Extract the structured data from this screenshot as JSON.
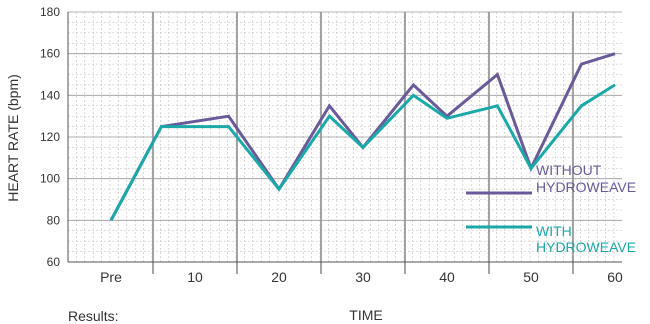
{
  "chart_data": {
    "type": "line",
    "categories": [
      "Pre",
      "10",
      "20",
      "30",
      "40",
      "50",
      "60"
    ],
    "xlabel": "TIME",
    "ylabel": "HEART RATE (bpm)",
    "ylim": [
      60,
      180
    ],
    "yticks": [
      60,
      80,
      100,
      120,
      140,
      160,
      180
    ],
    "grid": true,
    "legend_position": "right",
    "series": [
      {
        "name": "WITHOUT HYDROWEAVE",
        "color": "#6a5a9a",
        "x": [
          0,
          0.6,
          1.4,
          2.0,
          2.6,
          3.0,
          3.6,
          4.0,
          4.6,
          5.0,
          5.6,
          6.0
        ],
        "values": [
          80,
          125,
          130,
          95,
          135,
          115,
          145,
          130,
          150,
          105,
          155,
          160
        ]
      },
      {
        "name": "WITH HYDROWEAVE",
        "color": "#1aa8a8",
        "x": [
          0,
          0.6,
          1.4,
          2.0,
          2.6,
          3.0,
          3.6,
          4.0,
          4.6,
          5.0,
          5.6,
          6.0
        ],
        "values": [
          80,
          125,
          125,
          95,
          130,
          115,
          140,
          129,
          135,
          105,
          135,
          145
        ]
      }
    ]
  },
  "results_label": "Results:"
}
